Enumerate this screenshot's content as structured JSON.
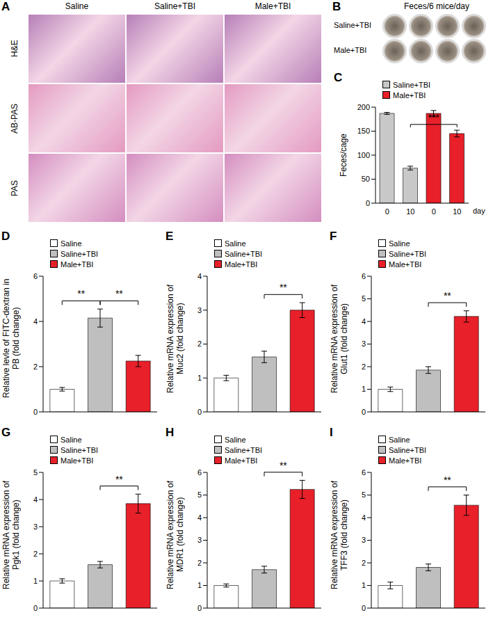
{
  "image_panels": [
    {
      "panel": "A",
      "columns": [
        "Saline",
        "Saline+TBI",
        "Male+TBI"
      ],
      "rows": [
        "H&E",
        "AB-PAS",
        "PAS"
      ]
    },
    {
      "panel": "B",
      "title": "Feces/6 mice/day",
      "rows": [
        "Saline+TBI",
        "Male+TBI"
      ]
    }
  ],
  "chart_data": [
    {
      "panel": "C",
      "type": "bar",
      "categories": [
        "0",
        "10",
        "0",
        "10"
      ],
      "x_label": "day",
      "y_label": "Feces/cage",
      "ylim": [
        0,
        200
      ],
      "yticks": [
        0,
        50,
        100,
        150,
        200
      ],
      "legend": "top-left",
      "series": [
        {
          "name": "Saline+TBI",
          "color": "#c8c8c8",
          "values": [
            187,
            73,
            null,
            null
          ],
          "errors": [
            2,
            4,
            null,
            null
          ]
        },
        {
          "name": "Male+TBI",
          "color": "#e8202a",
          "values": [
            null,
            null,
            187,
            145
          ],
          "errors": [
            null,
            null,
            6,
            7
          ]
        }
      ],
      "significance": [
        {
          "between": [
            1,
            3
          ],
          "label": "***"
        }
      ]
    },
    {
      "panel": "D",
      "type": "bar",
      "categories": [
        null,
        null,
        null
      ],
      "tick_labels": "y",
      "y_label": "Relative levle of FITC-dextran in PB (fold change)",
      "ylim": [
        0,
        6
      ],
      "yticks": [
        0,
        2,
        4,
        6
      ],
      "legend": "top-left",
      "series": [
        {
          "name": "Saline",
          "color": "#ffffff",
          "values": [
            1.0,
            null,
            null
          ],
          "errors": [
            0.08,
            null,
            null
          ]
        },
        {
          "name": "Saline+TBI",
          "color": "#bfbfbf",
          "values": [
            null,
            4.15,
            null
          ],
          "errors": [
            null,
            0.4,
            null
          ]
        },
        {
          "name": "Male+TBI",
          "color": "#e8202a",
          "values": [
            null,
            null,
            2.25
          ],
          "errors": [
            null,
            null,
            0.25
          ]
        }
      ],
      "significance": [
        {
          "between": [
            0,
            1
          ],
          "label": "**"
        },
        {
          "between": [
            1,
            2
          ],
          "label": "**"
        }
      ]
    },
    {
      "panel": "E",
      "type": "bar",
      "categories": [
        null,
        null,
        null
      ],
      "tick_labels": "y",
      "y_label": "Relative mRNA expression of Muc2 (fold change)",
      "ylim": [
        0,
        4
      ],
      "yticks": [
        0,
        1,
        2,
        3,
        4
      ],
      "legend": "top-left",
      "series": [
        {
          "name": "Saline",
          "color": "#ffffff",
          "values": [
            1.0,
            null,
            null
          ],
          "errors": [
            0.08,
            null,
            null
          ]
        },
        {
          "name": "Saline+TBI",
          "color": "#bfbfbf",
          "values": [
            null,
            1.62,
            null
          ],
          "errors": [
            null,
            0.17,
            null
          ]
        },
        {
          "name": "Male+TBI",
          "color": "#e8202a",
          "values": [
            null,
            null,
            3.0
          ],
          "errors": [
            null,
            null,
            0.22
          ]
        }
      ],
      "significance": [
        {
          "between": [
            1,
            2
          ],
          "label": "**"
        }
      ]
    },
    {
      "panel": "F",
      "type": "bar",
      "categories": [
        null,
        null,
        null
      ],
      "tick_labels": "y",
      "y_label": "Relative mRNA expression of Glut1 (fold change)",
      "ylim": [
        0,
        6
      ],
      "yticks": [
        0,
        1,
        2,
        3,
        4,
        5,
        6
      ],
      "legend": "top-left",
      "series": [
        {
          "name": "Saline",
          "color": "#ffffff",
          "values": [
            1.0,
            null,
            null
          ],
          "errors": [
            0.1,
            null,
            null
          ]
        },
        {
          "name": "Saline+TBI",
          "color": "#bfbfbf",
          "values": [
            null,
            1.85,
            null
          ],
          "errors": [
            null,
            0.15,
            null
          ]
        },
        {
          "name": "Male+TBI",
          "color": "#e8202a",
          "values": [
            null,
            null,
            4.22
          ],
          "errors": [
            null,
            null,
            0.25
          ]
        }
      ],
      "significance": [
        {
          "between": [
            1,
            2
          ],
          "label": "**"
        }
      ]
    },
    {
      "panel": "G",
      "type": "bar",
      "categories": [
        null,
        null,
        null
      ],
      "tick_labels": "y",
      "y_label": "Relative mRNA expression of Pgk1 (fold change)",
      "ylim": [
        0,
        5
      ],
      "yticks": [
        0,
        1,
        2,
        3,
        4,
        5
      ],
      "legend": "top-left",
      "series": [
        {
          "name": "Saline",
          "color": "#ffffff",
          "values": [
            1.0,
            null,
            null
          ],
          "errors": [
            0.08,
            null,
            null
          ]
        },
        {
          "name": "Saline+TBI",
          "color": "#bfbfbf",
          "values": [
            null,
            1.6,
            null
          ],
          "errors": [
            null,
            0.12,
            null
          ]
        },
        {
          "name": "Male+TBI",
          "color": "#e8202a",
          "values": [
            null,
            null,
            3.85
          ],
          "errors": [
            null,
            null,
            0.35
          ]
        }
      ],
      "significance": [
        {
          "between": [
            1,
            2
          ],
          "label": "**"
        }
      ]
    },
    {
      "panel": "H",
      "type": "bar",
      "categories": [
        null,
        null,
        null
      ],
      "tick_labels": "y",
      "y_label": "Relative mRNA expression of MDR1 (fold change)",
      "ylim": [
        0,
        6
      ],
      "yticks": [
        0,
        1,
        2,
        3,
        4,
        5,
        6
      ],
      "legend": "top-left",
      "series": [
        {
          "name": "Saline",
          "color": "#ffffff",
          "values": [
            1.0,
            null,
            null
          ],
          "errors": [
            0.07,
            null,
            null
          ]
        },
        {
          "name": "Saline+TBI",
          "color": "#bfbfbf",
          "values": [
            null,
            1.7,
            null
          ],
          "errors": [
            null,
            0.15,
            null
          ]
        },
        {
          "name": "Male+TBI",
          "color": "#e8202a",
          "values": [
            null,
            null,
            5.25
          ],
          "errors": [
            null,
            null,
            0.4
          ]
        }
      ],
      "significance": [
        {
          "between": [
            1,
            2
          ],
          "label": "**"
        }
      ]
    },
    {
      "panel": "I",
      "type": "bar",
      "categories": [
        null,
        null,
        null
      ],
      "tick_labels": "y",
      "y_label": "Relative mRNA expression of TFF3 (fold change)",
      "ylim": [
        0,
        6
      ],
      "yticks": [
        0,
        1,
        2,
        3,
        4,
        5,
        6
      ],
      "legend": "top-left",
      "series": [
        {
          "name": "Saline",
          "color": "#ffffff",
          "values": [
            1.0,
            null,
            null
          ],
          "errors": [
            0.15,
            null,
            null
          ]
        },
        {
          "name": "Saline+TBI",
          "color": "#bfbfbf",
          "values": [
            null,
            1.8,
            null
          ],
          "errors": [
            null,
            0.15,
            null
          ]
        },
        {
          "name": "Male+TBI",
          "color": "#e8202a",
          "values": [
            null,
            null,
            4.55
          ],
          "errors": [
            null,
            null,
            0.45
          ]
        }
      ],
      "significance": [
        {
          "between": [
            1,
            2
          ],
          "label": "**"
        }
      ]
    }
  ]
}
